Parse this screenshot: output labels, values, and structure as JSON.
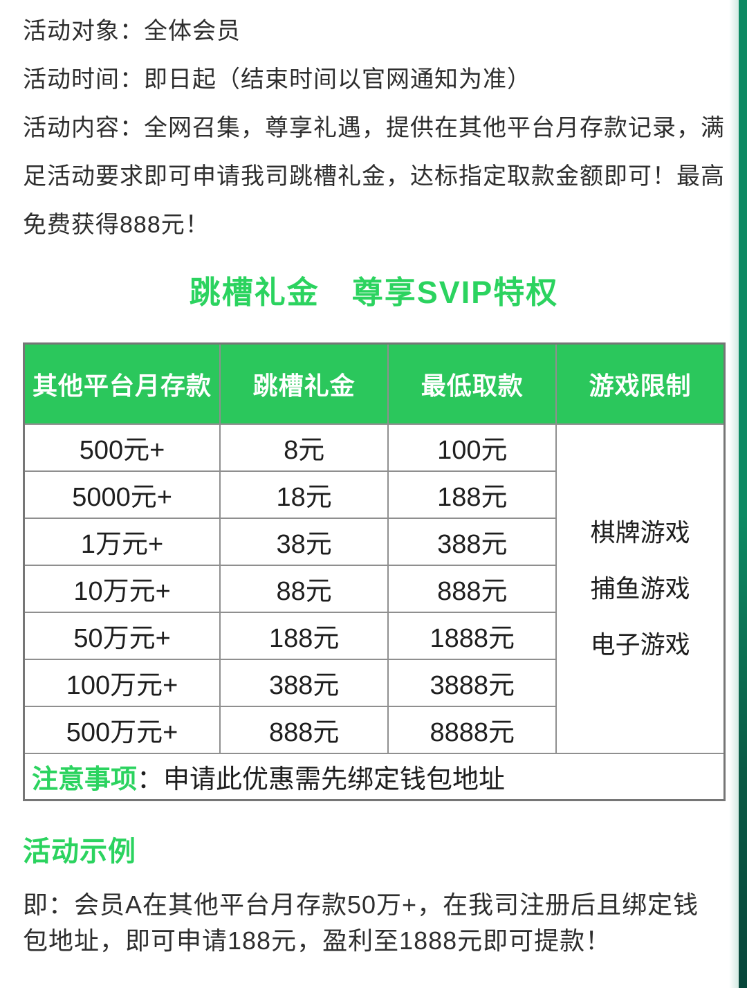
{
  "colors": {
    "accent_green": "#2bd35f",
    "table_header_green": "#2bc75c",
    "strip_green_top": "#0d8a63",
    "strip_green_bottom": "#07463a",
    "border_gray": "#8f8f8f"
  },
  "intro": {
    "target": "活动对象：全体会员",
    "time": "活动时间：即日起（结束时间以官网通知为准）",
    "content": "活动内容：全网召集，尊享礼遇，提供在其他平台月存款记录，满足活动要求即可申请我司跳槽礼金，达标指定取款金额即可！最高免费获得888元！"
  },
  "title": "跳槽礼金　尊享SVIP特权",
  "table": {
    "headers": [
      "其他平台月存款",
      "跳槽礼金",
      "最低取款",
      "游戏限制"
    ],
    "rows": [
      [
        "500元+",
        "8元",
        "100元"
      ],
      [
        "5000元+",
        "18元",
        "188元"
      ],
      [
        "1万元+",
        "38元",
        "388元"
      ],
      [
        "10万元+",
        "88元",
        "888元"
      ],
      [
        "50万元+",
        "188元",
        "1888元"
      ],
      [
        "100万元+",
        "388元",
        "3888元"
      ],
      [
        "500万元+",
        "888元",
        "8888元"
      ]
    ],
    "game_restrictions": [
      "棋牌游戏",
      "捕鱼游戏",
      "电子游戏"
    ],
    "note_label": "注意事项",
    "note_text": "：申请此优惠需先绑定钱包地址"
  },
  "example": {
    "heading": "活动示例",
    "text": "即：会员A在其他平台月存款50万+，在我司注册后且绑定钱包地址，即可申请188元，盈利至1888元即可提款！"
  }
}
